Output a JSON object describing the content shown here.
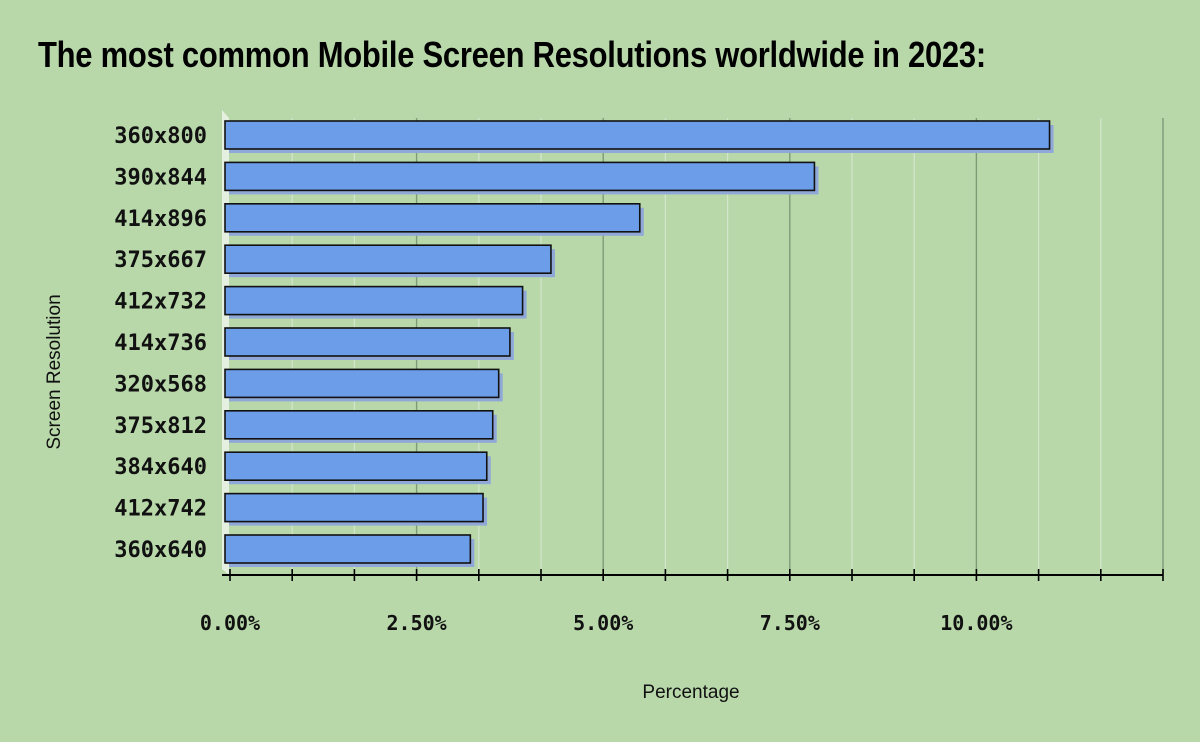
{
  "chart_data": {
    "type": "bar",
    "orientation": "horizontal",
    "title": "The most common Mobile Screen Resolutions worldwide in 2023:",
    "xlabel": "Percentage",
    "ylabel": "Screen Resolution",
    "categories": [
      "360x800",
      "390x844",
      "414x896",
      "375x667",
      "412x732",
      "414x736",
      "320x568",
      "375x812",
      "384x640",
      "412x742",
      "360x640"
    ],
    "values": [
      10.98,
      7.83,
      5.49,
      4.3,
      3.92,
      3.75,
      3.6,
      3.52,
      3.44,
      3.39,
      3.22
    ],
    "xlim": [
      0,
      12.5
    ],
    "xticks": [
      0,
      2.5,
      5,
      7.5,
      10
    ],
    "xtick_labels": [
      "0.00%",
      "2.50%",
      "5.00%",
      "7.50%",
      "10.00%"
    ],
    "grid": true,
    "bar_color": "#6c9de8",
    "background_color": "#b8d8aa"
  }
}
